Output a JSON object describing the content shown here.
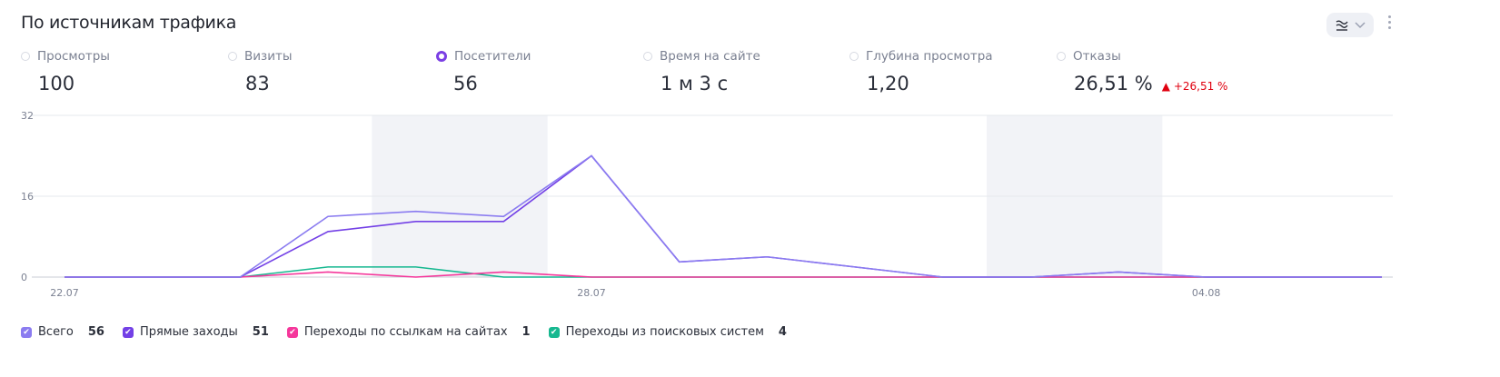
{
  "header": {
    "title": "По источникам трафика"
  },
  "metrics": [
    {
      "label": "Просмотры",
      "value": "100",
      "selected": false
    },
    {
      "label": "Визиты",
      "value": "83",
      "selected": false
    },
    {
      "label": "Посетители",
      "value": "56",
      "selected": true
    },
    {
      "label": "Время на сайте",
      "value": "1 м 3 с",
      "selected": false
    },
    {
      "label": "Глубина просмотра",
      "value": "1,20",
      "selected": false
    },
    {
      "label": "Отказы",
      "value": "26,51 %",
      "selected": false,
      "delta": "+26,51 %"
    }
  ],
  "chart_data": {
    "type": "line",
    "x": [
      "22.07",
      "23.07",
      "24.07",
      "25.07",
      "26.07",
      "27.07",
      "28.07",
      "29.07",
      "30.07",
      "31.07",
      "01.08",
      "02.08",
      "03.08",
      "04.08",
      "05.08",
      "06.08"
    ],
    "x_tick_labels": [
      "22.07",
      "28.07",
      "04.08"
    ],
    "y_tick_labels": [
      "0",
      "16",
      "32"
    ],
    "ylim": [
      0,
      32
    ],
    "weekends": [
      [
        "26.07",
        "27.07"
      ],
      [
        "02.08",
        "03.08"
      ]
    ],
    "series": [
      {
        "name": "Всего",
        "total": "56",
        "color": "#8b7cf0",
        "values": [
          0,
          0,
          0,
          12,
          13,
          12,
          24,
          3,
          4,
          2,
          0,
          0,
          1,
          0,
          0,
          0
        ]
      },
      {
        "name": "Прямые заходы",
        "total": "51",
        "color": "#7340e6",
        "values": [
          0,
          0,
          0,
          9,
          11,
          11,
          24,
          3,
          4,
          2,
          0,
          0,
          1,
          0,
          0,
          0
        ]
      },
      {
        "name": "Переходы по ссылкам на сайтах",
        "total": "1",
        "color": "#f5379b",
        "values": [
          0,
          0,
          0,
          1,
          0,
          1,
          0,
          0,
          0,
          0,
          0,
          0,
          0,
          0,
          0,
          0
        ]
      },
      {
        "name": "Переходы из поисковых систем",
        "total": "4",
        "color": "#17b890",
        "values": [
          0,
          0,
          0,
          2,
          2,
          0,
          0,
          0,
          0,
          0,
          0,
          0,
          0,
          0,
          0,
          0
        ]
      }
    ]
  }
}
